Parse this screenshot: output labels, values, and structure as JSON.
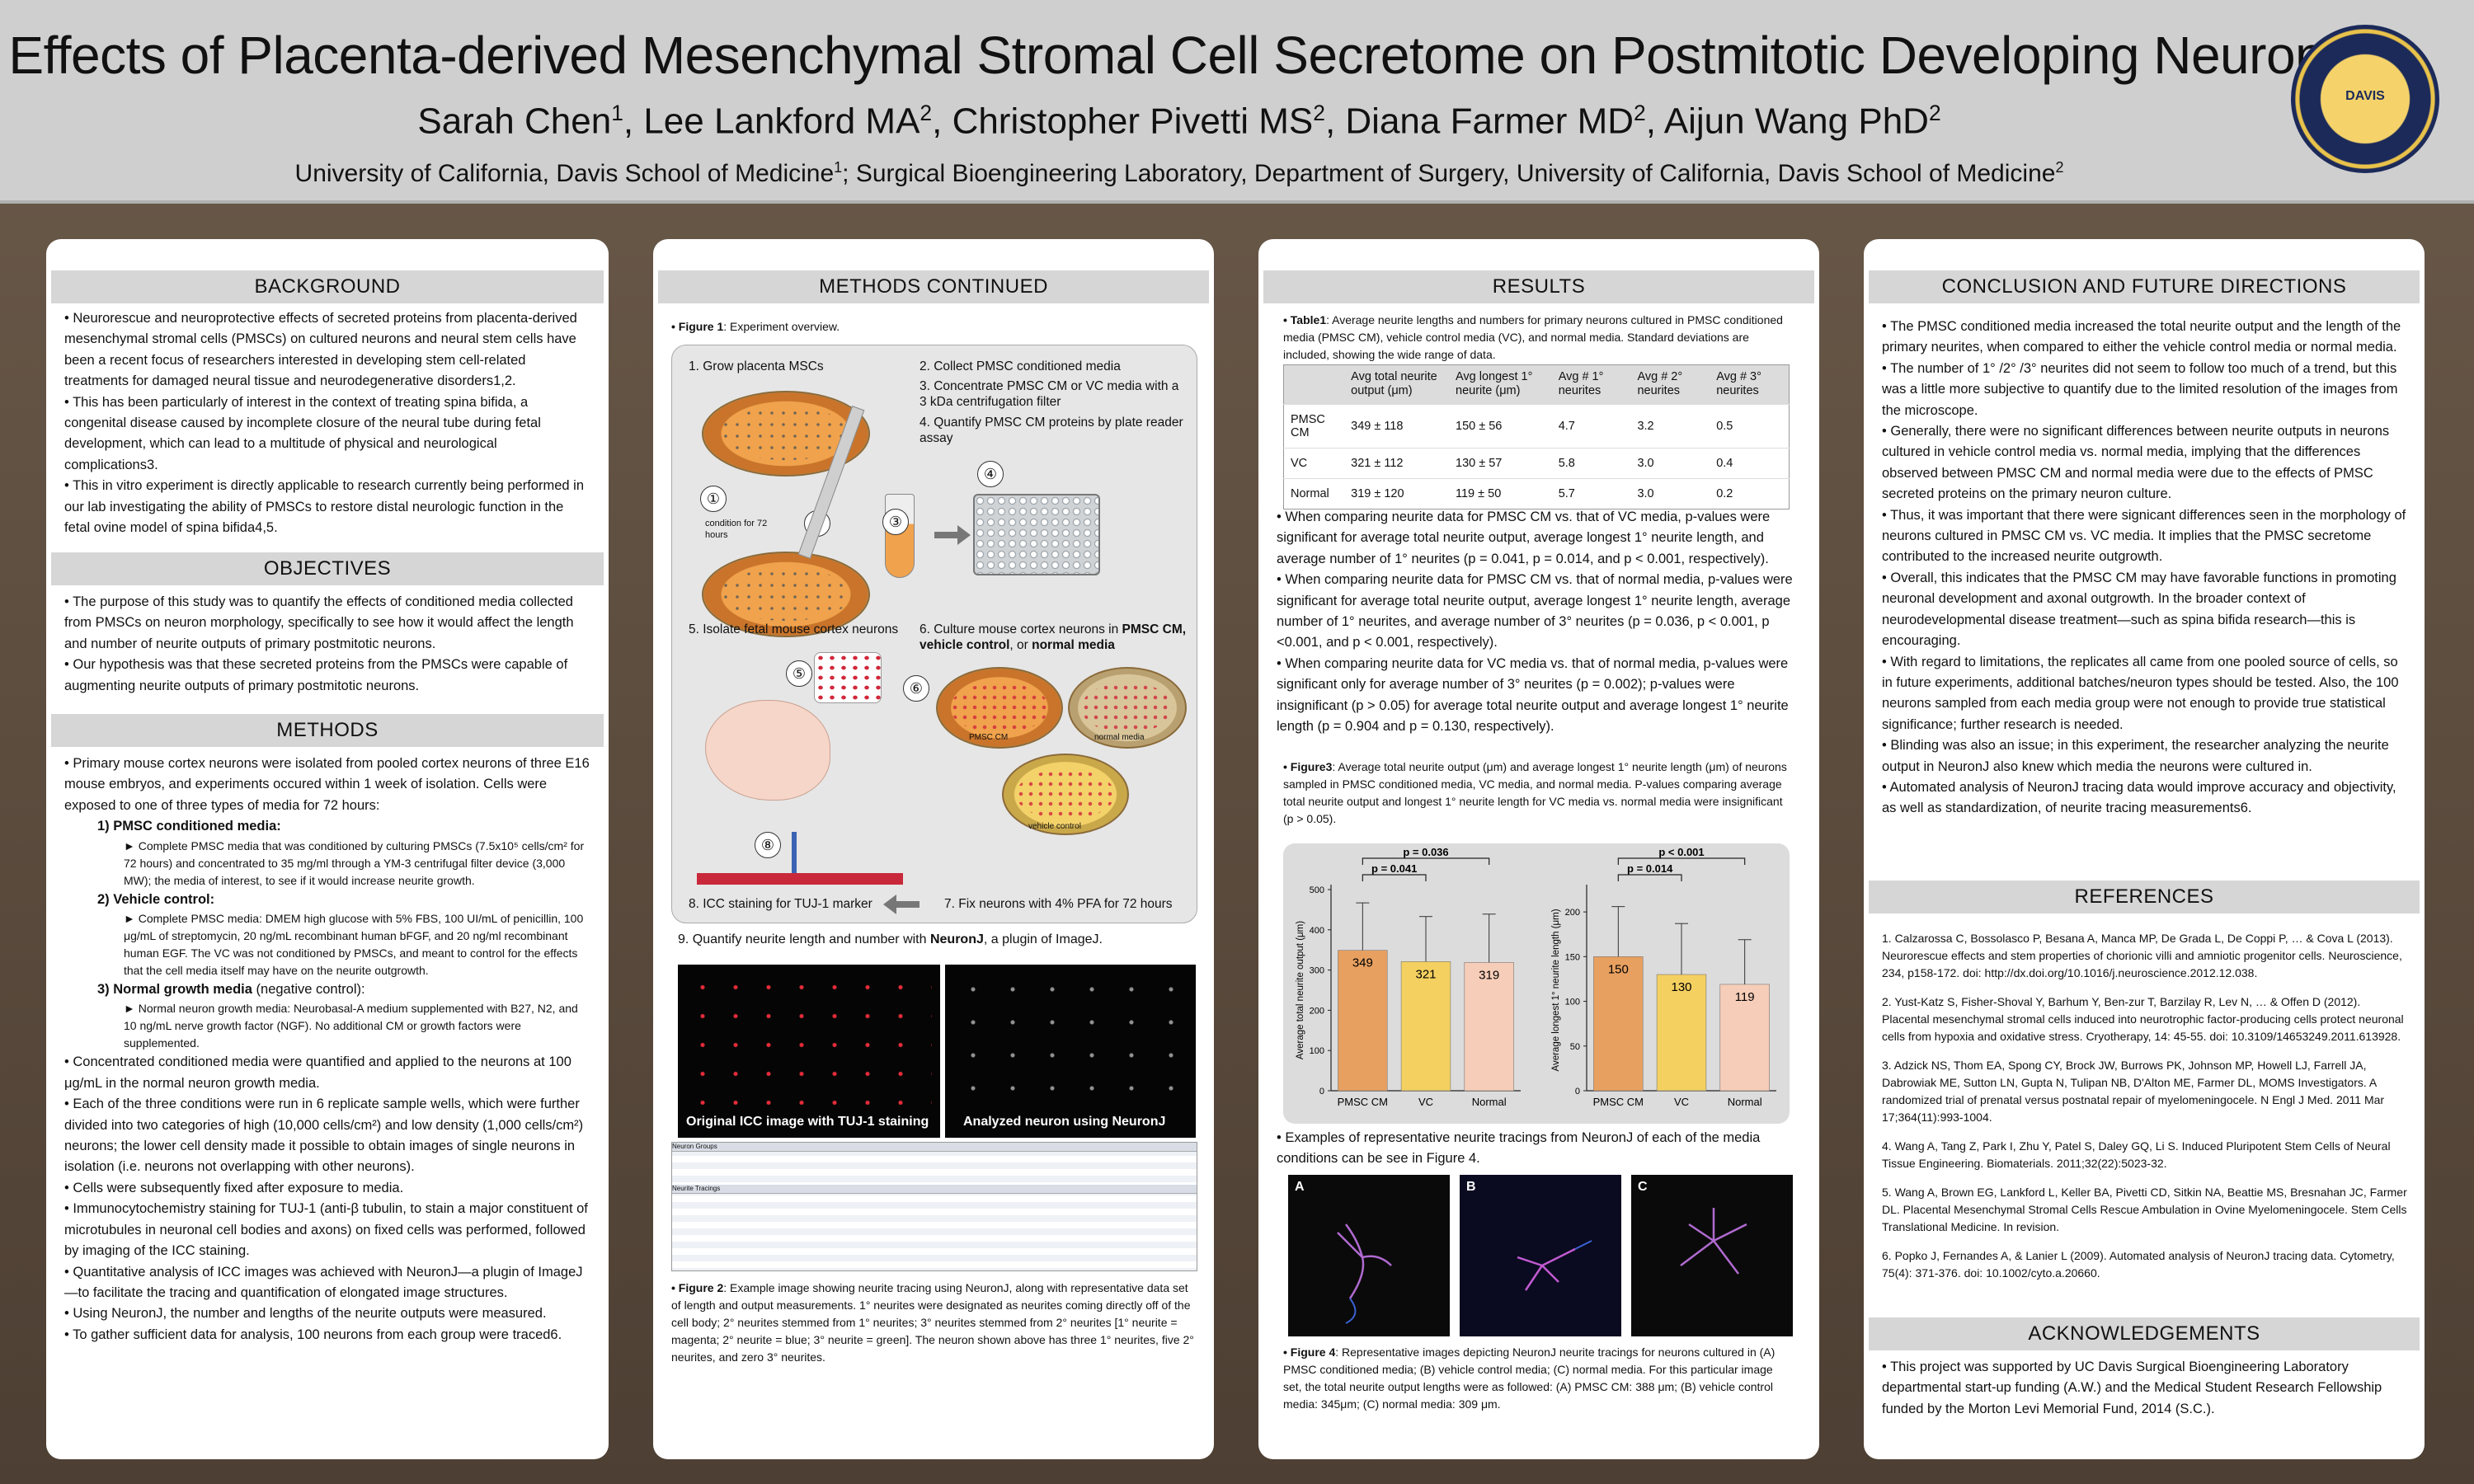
{
  "header": {
    "title": "Effects of Placenta-derived Mesenchymal Stromal Cell Secretome on Postmitotic Developing Neurons",
    "authors": [
      {
        "name": "Sarah Chen",
        "sup": "1"
      },
      {
        "name": "Lee Lankford MA",
        "sup": "2"
      },
      {
        "name": "Christopher Pivetti MS",
        "sup": "2"
      },
      {
        "name": "Diana Farmer MD",
        "sup": "2"
      },
      {
        "name": "Aijun Wang PhD",
        "sup": "2"
      }
    ],
    "affiliation_1": "University of California, Davis School of Medicine",
    "affiliation_2": "; Surgical Bioengineering Laboratory, Department of Surgery, University of California, Davis School of Medicine",
    "seal_text": "DAVIS"
  },
  "background": {
    "heading": "BACKGROUND",
    "bullets": [
      "• Neurorescue and neuroprotective effects of secreted proteins from placenta-derived mesenchymal stromal cells (PMSCs) on cultured neurons and neural stem cells have been a recent focus of researchers interested in developing stem cell-related treatments for damaged neural tissue and neurodegenerative disorders1,2.",
      "• This has been particularly of interest in the context of treating spina bifida, a congenital disease caused by incomplete closure of the neural tube during fetal development, which can lead to a multitude of physical and neurological complications3.",
      "• This in vitro experiment is directly applicable to research currently being performed in our lab investigating the ability of PMSCs to restore distal neurologic function in the fetal ovine model of spina bifida4,5."
    ]
  },
  "objectives": {
    "heading": "OBJECTIVES",
    "bullets": [
      "• The purpose of this study was to quantify the effects of conditioned media collected from PMSCs on neuron morphology, specifically to see how it would affect the length and number of neurite outputs of primary postmitotic neurons.",
      "• Our hypothesis was that these secreted proteins from the PMSCs were capable of augmenting neurite outputs of primary postmitotic neurons."
    ]
  },
  "methods": {
    "heading": "METHODS",
    "intro": "• Primary mouse cortex neurons were isolated from pooled cortex neurons of three E16 mouse embryos, and experiments occured within 1 week of isolation. Cells were exposed to one of three types of media for 72 hours:",
    "m1_title": "1) PMSC conditioned media:",
    "m1_text": "► Complete PMSC media that was conditioned by culturing PMSCs (7.5x10⁵ cells/cm² for 72 hours) and concentrated to 35 mg/ml through a YM-3 centrifugal filter device (3,000 MW); the media of interest, to see if it would increase neurite growth.",
    "m2_title": "2) Vehicle control:",
    "m2_text": "► Complete PMSC media: DMEM high glucose with 5% FBS, 100 UI/mL of penicillin, 100 μg/mL of streptomycin, 20 ng/mL recombinant human bFGF, and 20 ng/ml recombinant human EGF. The VC was not conditioned by PMSCs, and meant to control for the effects that the cell media itself may have on the neurite outgrowth.",
    "m3_title": "3) Normal growth media",
    "m3_suffix": " (negative control):",
    "m3_text": "► Normal neuron growth media: Neurobasal-A medium supplemented with B27, N2, and 10 ng/mL nerve growth factor (NGF). No additional CM or growth factors were supplemented.",
    "bullets": [
      "• Concentrated conditioned media were quantified and applied to the neurons at 100 μg/mL in the normal neuron growth media.",
      "• Each of the three conditions were run in 6 replicate sample wells, which were further divided into two categories of high (10,000 cells/cm²) and low density (1,000 cells/cm²) neurons; the lower cell density made it possible to obtain images of single neurons in isolation (i.e. neurons not overlapping with other neurons).",
      "• Cells were subsequently fixed after exposure to media.",
      "• Immunocytochemistry staining for TUJ-1 (anti-β tubulin, to stain a major constituent of microtubules in neuronal cell bodies and axons) on fixed cells was performed, followed by imaging of the ICC staining.",
      "• Quantitative analysis of ICC images was achieved with NeuronJ—a plugin of ImageJ—to facilitate the tracing and quantification of elongated image structures.",
      "• Using NeuronJ, the number and lengths of the neurite outputs were measured.",
      "• To gather sufficient data for analysis, 100 neurons from each group were traced6."
    ]
  },
  "methods_continued": {
    "heading": "METHODS CONTINUED",
    "fig1_label": "• Figure 1",
    "fig1_caption": ": Experiment overview.",
    "steps": {
      "s1": "1. Grow placenta MSCs",
      "s2": "2. Collect PMSC conditioned media",
      "s3": "3. Concentrate PMSC CM or VC media with a 3 kDa centrifugation filter",
      "s4": "4. Quantify PMSC CM proteins by plate reader assay",
      "s5": "5. Isolate fetal mouse cortex neurons",
      "s6a": "6. Culture mouse cortex neurons in ",
      "s6b": "PMSC CM, vehicle control",
      "s6c": ", or ",
      "s6d": "normal media",
      "s7": "7. Fix neurons with 4% PFA for 72 hours",
      "s8": "8. ICC staining for TUJ-1 marker",
      "s9a": "9. Quantify neurite length and number with ",
      "s9b": "NeuronJ",
      "s9c": ", a plugin of ImageJ."
    },
    "condition_label": "condition for 72 hours",
    "dish_labels": {
      "pmsc": "PMSC CM",
      "normal": "normal media",
      "vehicle": "vehicle control"
    },
    "nums": [
      "①",
      "②",
      "③",
      "④",
      "⑤",
      "⑥",
      "⑧"
    ],
    "img_left_caption": "Original ICC image with TUJ-1 staining",
    "img_right_caption": "Analyzed neuron using NeuronJ",
    "window_title_1": "Neuron Groups",
    "window_title_2": "Neurite Tracings",
    "fig2_label": "• Figure 2",
    "fig2_caption": ": Example image showing neurite tracing using NeuronJ, along with representative data set of length and output measurements. 1° neurites were designated as neurites coming directly off of the cell body; 2° neurites stemmed from 1° neurites; 3° neurites stemmed from 2° neurites [1° neurite = magenta; 2° neurite = blue; 3° neurite = green]. The neuron shown above has three 1° neurites, five 2° neurites, and zero 3° neurites."
  },
  "results": {
    "heading": "RESULTS",
    "table1_label": "• Table1",
    "table1_caption": ": Average neurite lengths and numbers for primary neurons cultured in PMSC conditioned media (PMSC CM), vehicle control media (VC), and normal media. Standard deviations are included, showing the wide range of data.",
    "table": {
      "headers": [
        "",
        "Avg total neurite output (μm)",
        "Avg longest 1° neurite (μm)",
        "Avg # 1° neurites",
        "Avg # 2° neurites",
        "Avg # 3° neurites"
      ],
      "rows": [
        [
          "PMSC CM",
          "349 ± 118",
          "150 ± 56",
          "4.7",
          "3.2",
          "0.5"
        ],
        [
          "VC",
          "321 ± 112",
          "130 ± 57",
          "5.8",
          "3.0",
          "0.4"
        ],
        [
          "Normal",
          "319 ± 120",
          "119 ± 50",
          "5.7",
          "3.0",
          "0.2"
        ]
      ]
    },
    "bullets": [
      "• When comparing neurite data for PMSC CM vs. that of VC media, p-values were significant for average total neurite output, average longest 1° neurite length, and average number of 1° neurites (p = 0.041, p = 0.014, and p < 0.001, respectively).",
      "• When comparing neurite data for PMSC CM vs. that of normal media, p-values were significant for average total neurite output, average longest 1° neurite length, average number of 1° neurites, and average number of 3° neurites (p = 0.036, p < 0.001, p <0.001, and p < 0.001, respectively).",
      "• When comparing neurite data for VC media vs. that of normal media, p-values were significant only for average number of 3° neurites (p = 0.002); p-values were insignificant (p > 0.05) for average total neurite output and average longest 1° neurite length (p = 0.904 and p = 0.130, respectively)."
    ],
    "fig3_label": "• Figure3",
    "fig3_caption": ": Average total neurite output (μm) and average longest 1° neurite length (μm) of neurons sampled in PMSC conditioned media, VC media, and normal media. P-values comparing average total neurite output and longest 1° neurite length for VC media vs. normal media were insignificant (p > 0.05).",
    "fig4_intro": "• Examples of representative neurite tracings from NeuronJ of each of the media conditions can be see in Figure 4.",
    "fig4_panel_labels": [
      "A",
      "B",
      "C"
    ],
    "fig4_label": "• Figure 4",
    "fig4_caption": ": Representative images depicting NeuronJ neurite tracings for neurons cultured in (A) PMSC conditioned media; (B) vehicle control media; (C) normal media. For this particular image set, the total neurite output lengths were as followed: (A) PMSC CM: 388 μm; (B) vehicle control media: 345μm; (C) normal media: 309 μm."
  },
  "chart_data": [
    {
      "type": "bar",
      "categories": [
        "PMSC CM",
        "VC",
        "Normal"
      ],
      "values": [
        349,
        321,
        319
      ],
      "errors": [
        118,
        112,
        120
      ],
      "colors": [
        "#e8a060",
        "#f4d060",
        "#f6cdb8"
      ],
      "xlabel": "",
      "ylabel": "Average total neurite output (μm)",
      "ylim": [
        0,
        500
      ],
      "yticks": [
        0,
        100,
        200,
        300,
        400,
        500
      ],
      "annotations": [
        "p = 0.036",
        "p = 0.041"
      ]
    },
    {
      "type": "bar",
      "categories": [
        "PMSC CM",
        "VC",
        "Normal"
      ],
      "values": [
        150,
        130,
        119
      ],
      "errors": [
        56,
        57,
        50
      ],
      "colors": [
        "#e8a060",
        "#f4d060",
        "#f6cdb8"
      ],
      "xlabel": "",
      "ylabel": "Average longest 1° neurite length (μm)",
      "ylim": [
        0,
        225
      ],
      "yticks": [
        0,
        50,
        100,
        150,
        200
      ],
      "annotations": [
        "p < 0.001",
        "p = 0.014"
      ]
    }
  ],
  "conclusion": {
    "heading": "CONCLUSION AND FUTURE DIRECTIONS",
    "bullets": [
      "• The PMSC conditioned media increased the total neurite output and the length of the primary neurites, when compared to either the vehicle control media or normal media.",
      "• The number of 1° /2° /3° neurites did not seem to follow too much of a trend, but this was a little more subjective to quantify due to the limited resolution of the images from the microscope.",
      "• Generally, there were no significant differences between neurite outputs in neurons cultured in vehicle control media vs. normal media, implying that the differences observed between PMSC CM and normal media were due to the effects of PMSC secreted proteins on the primary neuron culture.",
      "• Thus, it was important that there were signicant differences seen in the morphology of neurons cultured in PMSC CM vs. VC media. It implies that the PMSC secretome contributed to the increased neurite outgrowth.",
      "• Overall, this indicates that the PMSC CM may have favorable functions in promoting neuronal development and axonal outgrowth. In the broader context of neurodevelopmental disease treatment—such as spina bifida research—this is encouraging.",
      "• With regard to limitations, the replicates all came from one pooled source of cells, so in future experiments, additional batches/neuron types should be tested. Also, the 100 neurons sampled from each media group were not enough to provide true statistical significance; further research is needed.",
      "• Blinding was also an issue; in this experiment, the researcher analyzing the neurite output in NeuronJ also knew which media the neurons were cultured in.",
      "• Automated analysis of NeuronJ tracing data would improve accuracy and objectivity, as well as standardization, of neurite tracing measurements6."
    ]
  },
  "references": {
    "heading": "REFERENCES",
    "items": [
      "1. Calzarossa C, Bossolasco P, Besana A, Manca MP, De Grada L, De Coppi P, … & Cova L (2013). Neurorescue effects and stem properties of chorionic villi and amniotic progenitor cells. Neuroscience, 234, p158-172. doi: http://dx.doi.org/10.1016/j.neuroscience.2012.12.038.",
      "2. Yust-Katz S, Fisher-Shoval Y, Barhum Y, Ben-zur T, Barzilay R, Lev N, … & Offen D (2012). Placental mesenchymal stromal cells induced into neurotrophic factor-producing cells protect neuronal cells from hypoxia and oxidative stress. Cryotherapy, 14: 45-55. doi: 10.3109/14653249.2011.613928.",
      "3. Adzick NS, Thom EA, Spong CY, Brock JW, Burrows PK, Johnson MP, Howell LJ, Farrell JA, Dabrowiak ME, Sutton LN, Gupta N, Tulipan NB, D'Alton ME, Farmer DL, MOMS Investigators. A randomized trial of prenatal versus postnatal repair of myelomeningocele. N Engl J Med. 2011 Mar 17;364(11):993-1004.",
      "4. Wang A, Tang Z, Park I, Zhu Y, Patel S, Daley GQ, Li S. Induced Pluripotent Stem Cells of Neural Tissue Engineering. Biomaterials. 2011;32(22):5023-32.",
      "5. Wang A, Brown EG, Lankford L, Keller BA, Pivetti CD, Sitkin NA, Beattie MS, Bresnahan JC, Farmer DL. Placental Mesenchymal Stromal Cells Rescue Ambulation in Ovine Myelomeningocele. Stem Cells Translational Medicine. In revision.",
      "6. Popko J, Fernandes A, & Lanier L (2009). Automated analysis of NeuronJ tracing data. Cytometry, 75(4): 371-376. doi: 10.1002/cyto.a.20660."
    ]
  },
  "acknowledgements": {
    "heading": "ACKNOWLEDGEMENTS",
    "text": "• This project was supported by UC Davis Surgical Bioengineering Laboratory departmental start-up funding (A.W.) and the Medical Student Research Fellowship funded by the Morton Levi Memorial Fund, 2014 (S.C.)."
  }
}
